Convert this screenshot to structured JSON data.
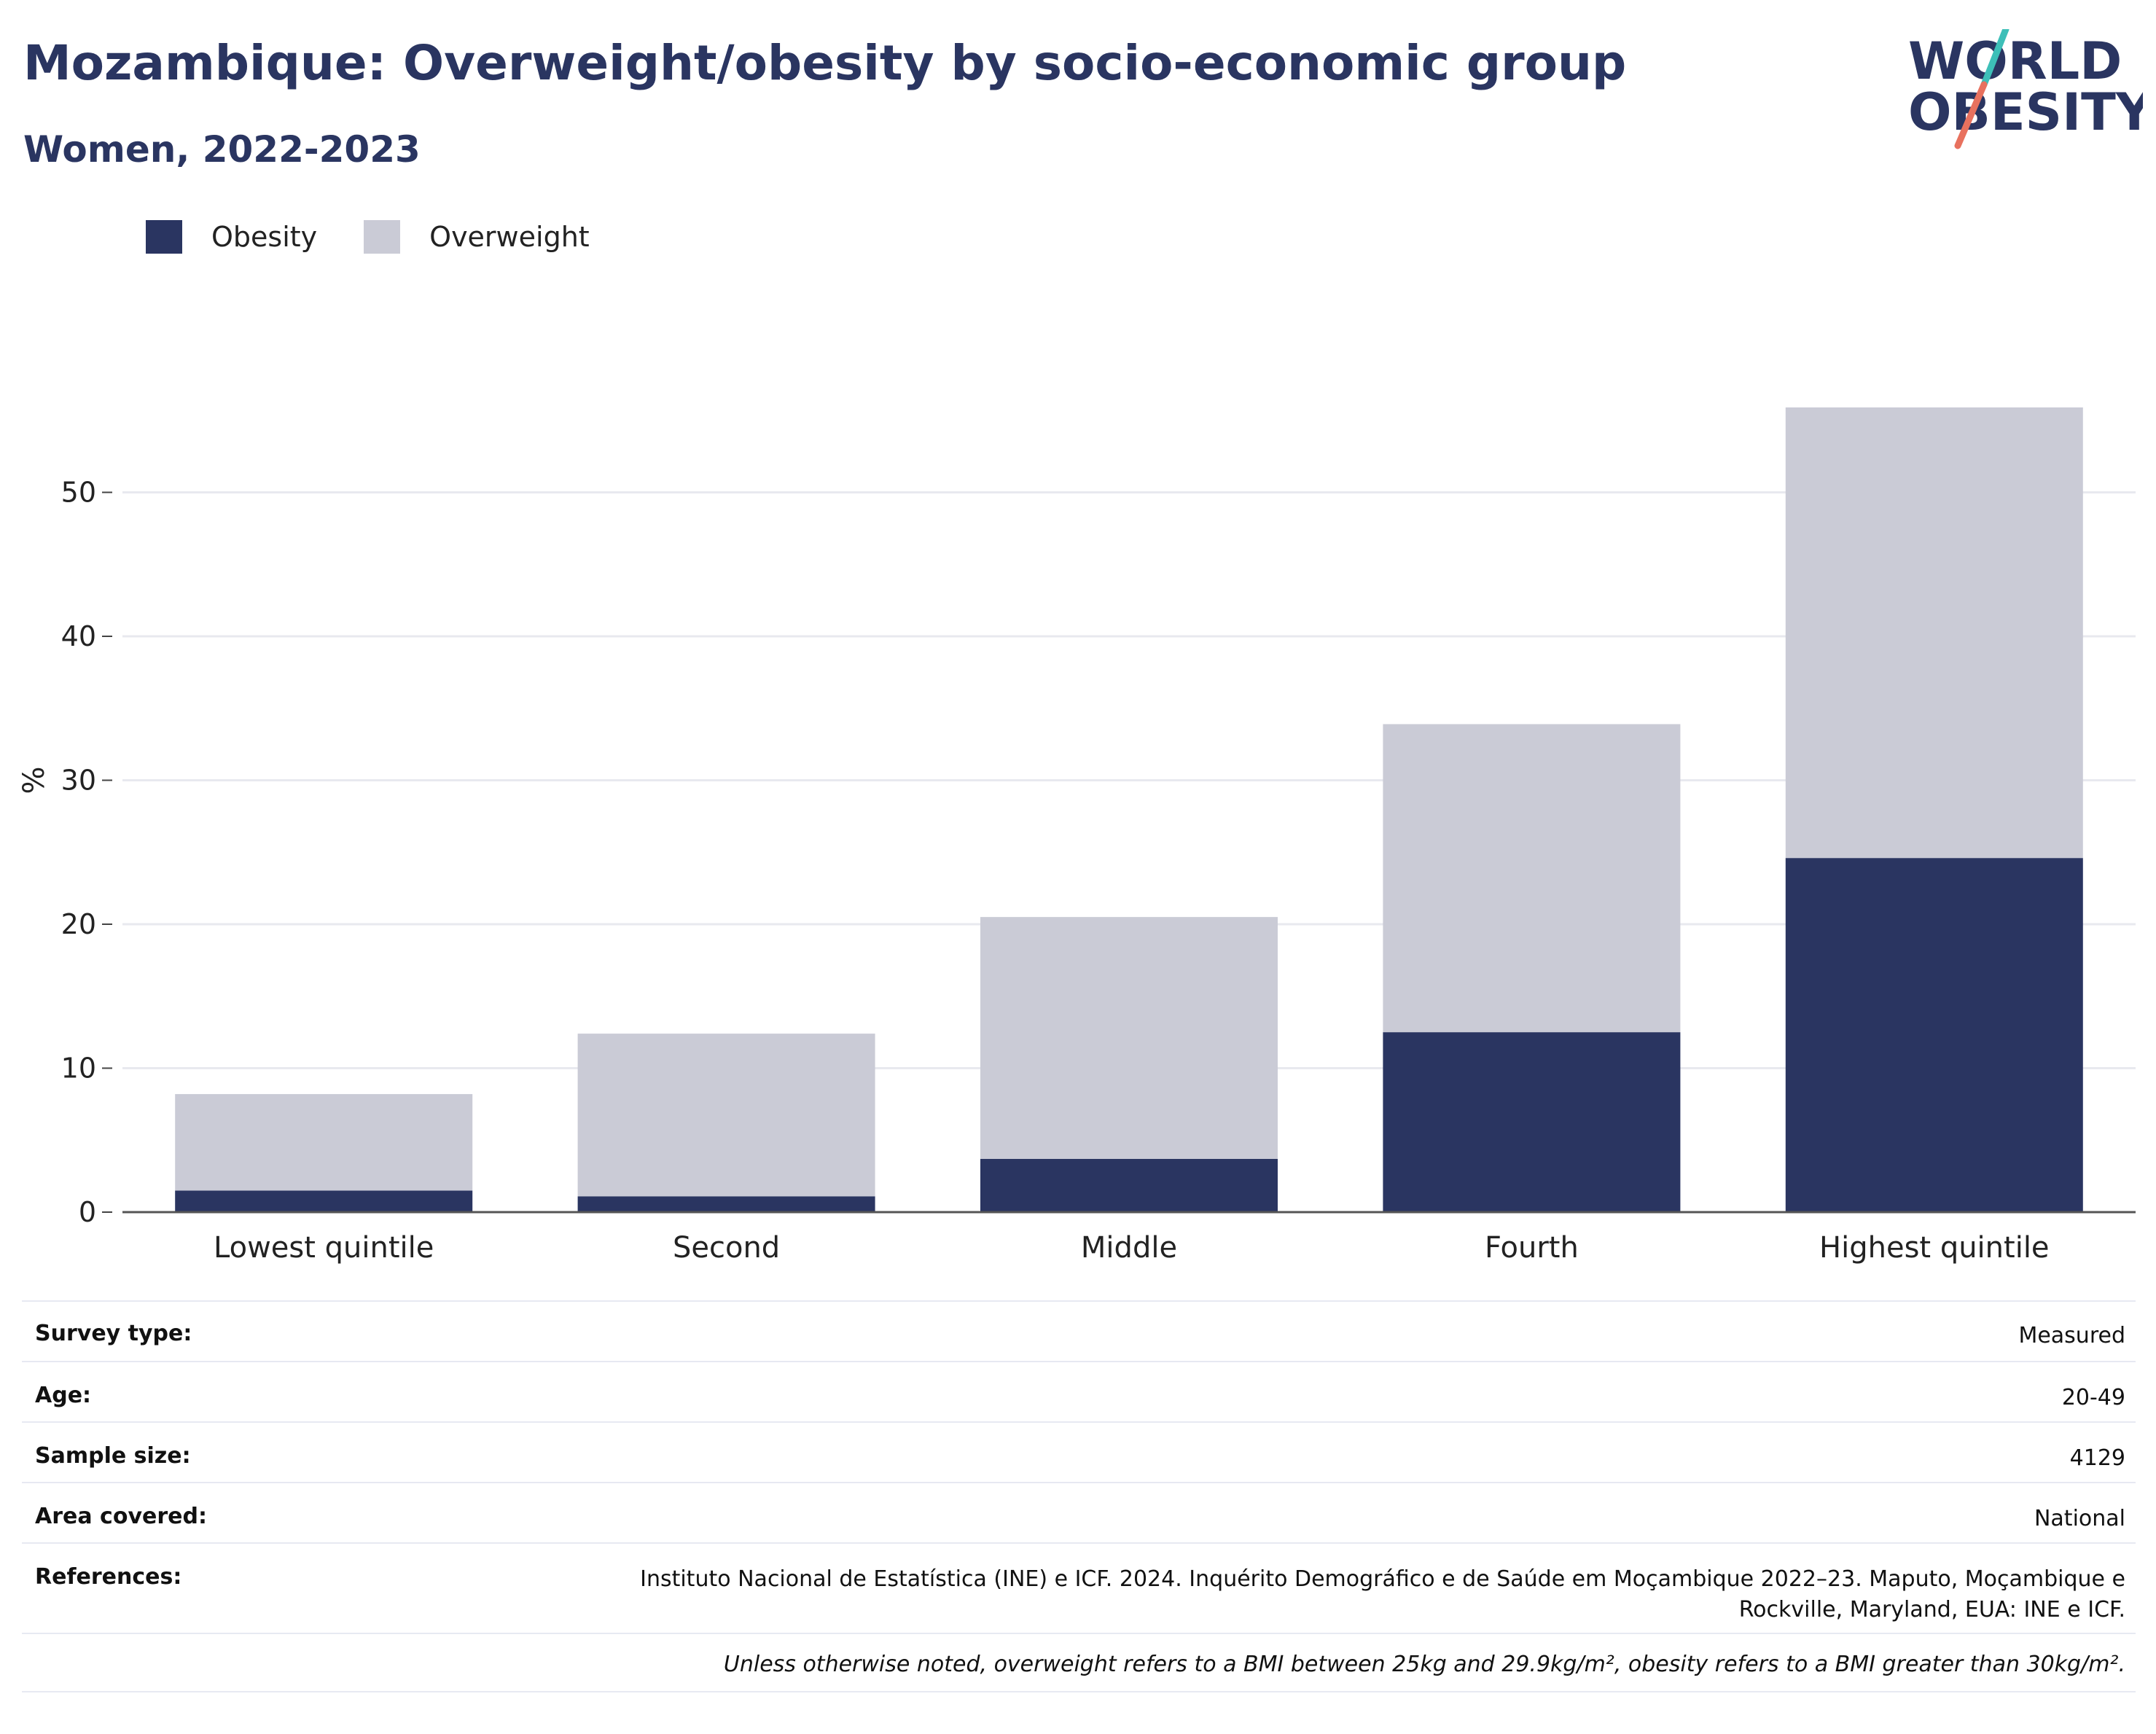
{
  "title": "Mozambique: Overweight/obesity by socio-economic group",
  "subtitle": "Women, 2022-2023",
  "logo": {
    "line1": "WORLD",
    "line2": "OBESITY",
    "accent_teal": "#3dbfb8",
    "accent_coral": "#e8715e"
  },
  "legend": [
    {
      "label": "Obesity",
      "color": "#2a3561"
    },
    {
      "label": "Overweight",
      "color": "#cacbd6"
    }
  ],
  "chart_data": {
    "type": "bar",
    "stacked": true,
    "categories": [
      "Lowest quintile",
      "Second",
      "Middle",
      "Fourth",
      "Highest quintile"
    ],
    "series": [
      {
        "name": "Obesity",
        "color": "#2a3561",
        "values": [
          1.5,
          1.1,
          3.7,
          12.5,
          24.6
        ]
      },
      {
        "name": "Overweight",
        "color": "#cacbd6",
        "values": [
          6.7,
          11.3,
          16.8,
          21.4,
          31.3
        ]
      }
    ],
    "ylabel": "%",
    "ylim": [
      0,
      60
    ],
    "yticks": [
      0,
      10,
      20,
      30,
      40,
      50
    ],
    "grid": true,
    "legend_position": "top-left"
  },
  "meta": {
    "survey_type": {
      "label": "Survey type:",
      "value": "Measured"
    },
    "age": {
      "label": "Age:",
      "value": "20-49"
    },
    "sample_size": {
      "label": "Sample size:",
      "value": "4129"
    },
    "area_covered": {
      "label": "Area covered:",
      "value": "National"
    },
    "references": {
      "label": "References:",
      "value": "Instituto Nacional de Estatística (INE) e ICF. 2024. Inquérito Demográfico e de Saúde em Moçambique 2022–23. Maputo, Moçambique e Rockville, Maryland, EUA: INE e ICF."
    }
  },
  "note": "Unless otherwise noted, overweight refers to a BMI between 25kg and 29.9kg/m², obesity refers to a BMI greater than 30kg/m²."
}
